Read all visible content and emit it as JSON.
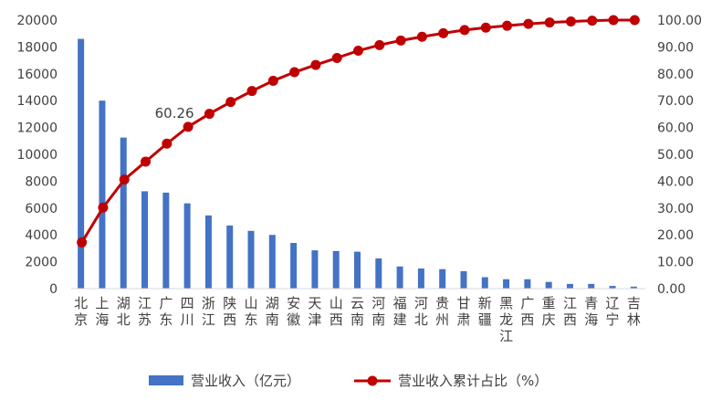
{
  "chart_data": {
    "type": "bar+line",
    "categories": [
      "北京",
      "上海",
      "湖北",
      "江苏",
      "广东",
      "四川",
      "浙江",
      "陕西",
      "山东",
      "湖南",
      "安徽",
      "天津",
      "山西",
      "云南",
      "河南",
      "福建",
      "河北",
      "贵州",
      "甘肃",
      "新疆",
      "黑龙江",
      "广西",
      "重庆",
      "江西",
      "青海",
      "辽宁",
      "吉林"
    ],
    "series": [
      {
        "name": "营业收入（亿元）",
        "type": "bar",
        "axis": "left",
        "color": "#4472C4",
        "values": [
          18600,
          14000,
          11250,
          7250,
          7150,
          6350,
          5450,
          4700,
          4300,
          4000,
          3400,
          2850,
          2800,
          2750,
          2250,
          1650,
          1500,
          1450,
          1300,
          850,
          700,
          700,
          500,
          350,
          350,
          200,
          150
        ]
      },
      {
        "name": "营业收入累计占比（%）",
        "type": "line",
        "axis": "right",
        "color": "#C00000",
        "values": [
          17.2,
          30.2,
          40.6,
          47.3,
          54.0,
          60.26,
          65.1,
          69.5,
          73.6,
          77.4,
          80.6,
          83.3,
          85.9,
          88.6,
          90.7,
          92.4,
          93.8,
          95.1,
          96.3,
          97.2,
          97.9,
          98.6,
          99.1,
          99.5,
          99.8,
          100.0,
          100.0
        ]
      }
    ],
    "annotations": [
      {
        "series": 1,
        "index": 5,
        "text": "60.26"
      }
    ],
    "y_left": {
      "min": 0,
      "max": 20000,
      "step": 2000,
      "ticks": [
        "0",
        "2000",
        "4000",
        "6000",
        "8000",
        "10000",
        "12000",
        "14000",
        "16000",
        "18000",
        "20000"
      ]
    },
    "y_right": {
      "min": 0,
      "max": 100,
      "step": 10,
      "ticks": [
        "0.00",
        "10.00",
        "20.00",
        "30.00",
        "40.00",
        "50.00",
        "60.00",
        "70.00",
        "80.00",
        "90.00",
        "100.00"
      ]
    },
    "grid": false,
    "legend_position": "bottom"
  }
}
